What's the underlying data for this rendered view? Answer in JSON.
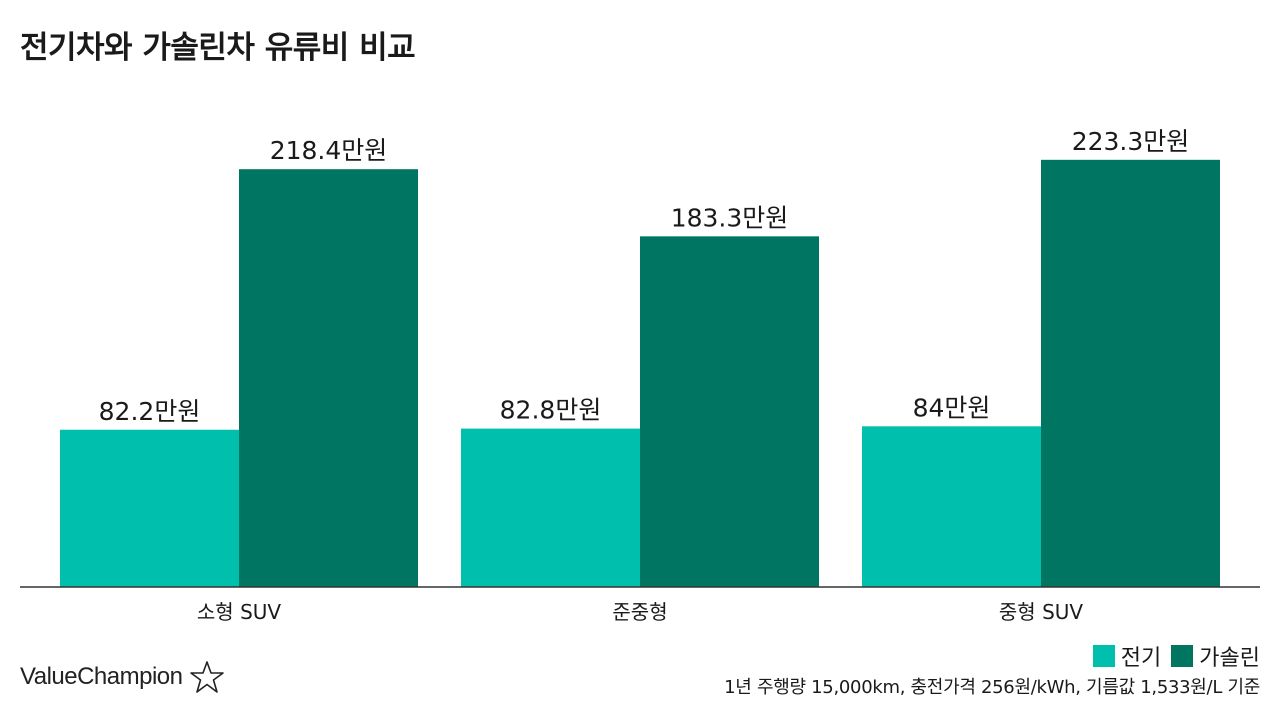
{
  "title": "전기차와 가솔린차 유류비 비교",
  "colors": {
    "electric": "#00bfad",
    "gasoline": "#007562",
    "axis": "#333333",
    "text": "#1a1a1a"
  },
  "chart_data": {
    "type": "bar",
    "title": "전기차와 가솔린차 유류비 비교",
    "xlabel": "",
    "ylabel": "",
    "unit": "만원",
    "categories": [
      "소형 SUV",
      "준중형",
      "중형 SUV"
    ],
    "series": [
      {
        "name": "전기",
        "values": [
          82.2,
          82.8,
          84
        ],
        "labels": [
          "82.2만원",
          "82.8만원",
          "84만원"
        ]
      },
      {
        "name": "가솔린",
        "values": [
          218.4,
          183.3,
          223.3
        ],
        "labels": [
          "218.4만원",
          "183.3만원",
          "223.3만원"
        ]
      }
    ],
    "ylim": [
      0,
      280
    ],
    "grid": false,
    "legend": "bottom-right"
  },
  "legend": {
    "electric": "전기",
    "gasoline": "가솔린"
  },
  "note": "1년 주행량 15,000km, 충전가격 256원/kWh, 기름값 1,533원/L 기준",
  "brand": {
    "name": "ValueChampion",
    "icon": "star-outline-icon"
  }
}
